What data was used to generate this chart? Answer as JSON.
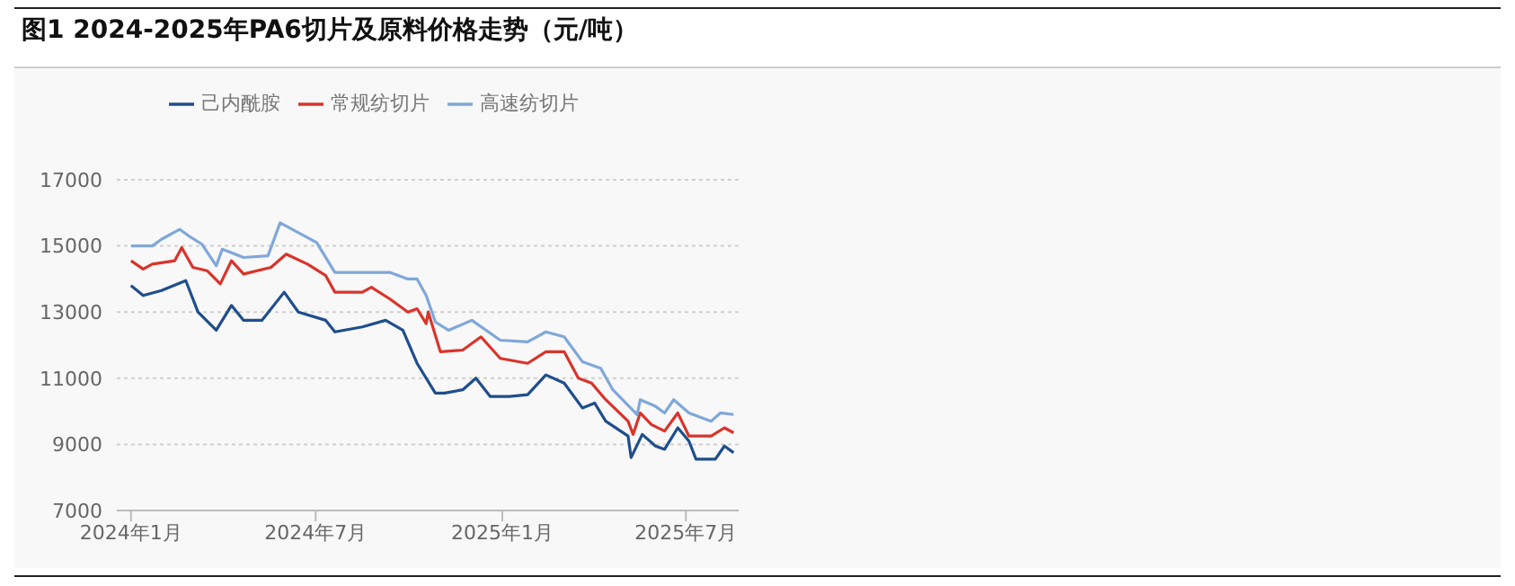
{
  "chart_data": {
    "type": "line",
    "title": "图1 2024-2025年PA6切片及原料价格走势（元/吨）",
    "xlim": [
      "2023-12-18",
      "2025-08-22"
    ],
    "xticks": [
      {
        "value": "2024-01-01",
        "label": "2024年1月"
      },
      {
        "value": "2024-07-01",
        "label": "2024年7月"
      },
      {
        "value": "2025-01-01",
        "label": "2025年1月"
      },
      {
        "value": "2025-07-01",
        "label": "2025年7月"
      }
    ],
    "ylim": [
      7000,
      17000
    ],
    "yticks": [
      7000,
      9000,
      11000,
      13000,
      15000,
      17000
    ],
    "grid": "y",
    "legend": "top",
    "marker": "none",
    "line_style": "solid",
    "series": [
      {
        "name": "常规纺切片",
        "color": "#d9342b",
        "x": [
          "2024-01-01",
          "2024-01-13",
          "2024-01-22",
          "2024-02-13",
          "2024-02-20",
          "2024-03-02",
          "2024-03-16",
          "2024-03-29",
          "2024-04-09",
          "2024-04-21",
          "2024-05-18",
          "2024-06-02",
          "2024-06-23",
          "2024-07-11",
          "2024-07-20",
          "2024-08-16",
          "2024-08-25",
          "2024-09-12",
          "2024-09-30",
          "2024-10-09",
          "2024-10-18",
          "2024-10-20",
          "2024-11-01",
          "2024-11-23",
          "2024-12-11",
          "2024-12-30",
          "2025-01-26",
          "2025-02-13",
          "2025-03-03",
          "2025-03-17",
          "2025-03-30",
          "2025-04-13",
          "2025-05-05",
          "2025-05-10",
          "2025-05-17",
          "2025-05-28",
          "2025-06-10",
          "2025-06-23",
          "2025-07-04",
          "2025-07-26",
          "2025-08-08",
          "2025-08-17"
        ],
        "values": [
          14550,
          14300,
          14450,
          14550,
          14950,
          14350,
          14250,
          13850,
          14550,
          14150,
          14350,
          14750,
          14450,
          14100,
          13600,
          13600,
          13750,
          13400,
          13000,
          13100,
          12650,
          13000,
          11800,
          11850,
          12250,
          11600,
          11450,
          11800,
          11800,
          11000,
          10850,
          10350,
          9700,
          9300,
          9950,
          9600,
          9400,
          9950,
          9250,
          9250,
          9500,
          9350
        ]
      },
      {
        "name": "高速纺切片",
        "color": "#7fa7d9",
        "x": [
          "2024-01-01",
          "2024-01-22",
          "2024-01-31",
          "2024-02-18",
          "2024-02-27",
          "2024-03-11",
          "2024-03-25",
          "2024-03-31",
          "2024-04-21",
          "2024-05-15",
          "2024-05-27",
          "2024-06-14",
          "2024-07-02",
          "2024-07-20",
          "2024-08-07",
          "2024-09-12",
          "2024-09-30",
          "2024-10-09",
          "2024-10-18",
          "2024-10-27",
          "2024-11-09",
          "2024-12-02",
          "2024-12-30",
          "2025-01-26",
          "2025-02-13",
          "2025-03-03",
          "2025-03-21",
          "2025-04-08",
          "2025-04-20",
          "2025-05-14",
          "2025-05-17",
          "2025-06-01",
          "2025-06-10",
          "2025-06-19",
          "2025-07-04",
          "2025-07-26",
          "2025-08-04",
          "2025-08-17"
        ],
        "values": [
          15000,
          15000,
          15200,
          15500,
          15300,
          15050,
          14400,
          14900,
          14650,
          14700,
          15700,
          15400,
          15100,
          14200,
          14200,
          14200,
          14000,
          14000,
          13500,
          12700,
          12450,
          12750,
          12150,
          12100,
          12400,
          12250,
          11500,
          11300,
          10650,
          9900,
          10350,
          10150,
          9950,
          10350,
          9950,
          9700,
          9950,
          9900
        ]
      },
      {
        "name": "己内酰胺",
        "color": "#1f4e8c",
        "x": [
          "2024-01-01",
          "2024-01-13",
          "2024-01-31",
          "2024-02-24",
          "2024-03-07",
          "2024-03-25",
          "2024-04-09",
          "2024-04-21",
          "2024-05-09",
          "2024-05-31",
          "2024-06-14",
          "2024-07-11",
          "2024-07-20",
          "2024-08-16",
          "2024-09-08",
          "2024-09-25",
          "2024-10-09",
          "2024-10-27",
          "2024-11-05",
          "2024-11-23",
          "2024-12-06",
          "2024-12-20",
          "2025-01-08",
          "2025-01-26",
          "2025-02-13",
          "2025-03-03",
          "2025-03-21",
          "2025-04-02",
          "2025-04-13",
          "2025-05-05",
          "2025-05-08",
          "2025-05-19",
          "2025-06-01",
          "2025-06-10",
          "2025-06-23",
          "2025-07-04",
          "2025-07-11",
          "2025-07-30",
          "2025-08-08",
          "2025-08-17"
        ],
        "values": [
          13800,
          13500,
          13650,
          13950,
          13000,
          12450,
          13200,
          12750,
          12750,
          13600,
          13000,
          12750,
          12400,
          12550,
          12750,
          12450,
          11450,
          10550,
          10550,
          10650,
          11000,
          10450,
          10450,
          10500,
          11100,
          10850,
          10100,
          10250,
          9700,
          9250,
          8600,
          9300,
          8950,
          8850,
          9500,
          9100,
          8550,
          8550,
          8950,
          8750
        ]
      }
    ]
  }
}
